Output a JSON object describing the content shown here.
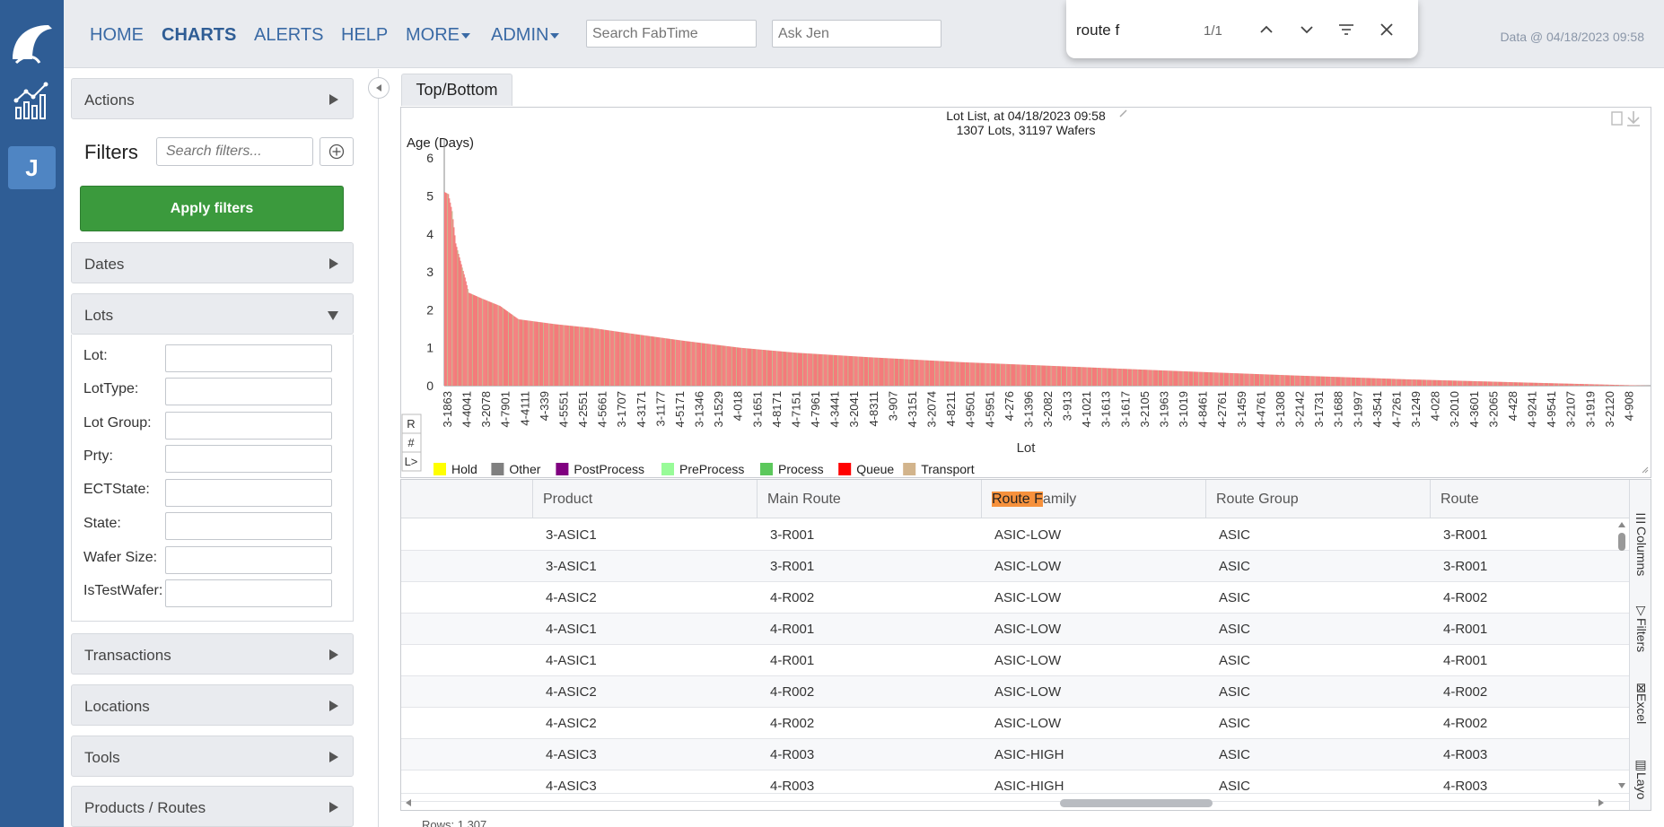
{
  "app": {
    "nav": [
      "HOME",
      "CHARTS",
      "ALERTS",
      "HELP",
      "MORE",
      "ADMIN"
    ],
    "active_nav": "CHARTS",
    "search_placeholder": "Search FabTime",
    "ask_placeholder": "Ask Jen",
    "data_stamp": "Data @ 04/18/2023 09:58",
    "user_initial": "J"
  },
  "findbar": {
    "query": "route f",
    "count": "1/1"
  },
  "sidebar": {
    "actions_label": "Actions",
    "filters_title": "Filters",
    "filters_search_placeholder": "Search filters...",
    "apply_label": "Apply filters",
    "dates_label": "Dates",
    "lots_label": "Lots",
    "lot_fields": [
      "Lot:",
      "LotType:",
      "Lot Group:",
      "Prty:",
      "ECTState:",
      "State:",
      "Wafer Size:",
      "IsTestWafer:"
    ],
    "transactions_label": "Transactions",
    "locations_label": "Locations",
    "tools_label": "Tools",
    "products_routes_label": "Products / Routes"
  },
  "main": {
    "tab_label": "Top/Bottom"
  },
  "chart_data": {
    "type": "bar",
    "title": "Lot List, at 04/18/2023 09:58",
    "subtitle": "1307 Lots, 31197 Wafers",
    "ylabel": "Age (Days)",
    "xlabel": "Lot",
    "ylim": [
      0,
      6.5
    ],
    "yticks": [
      0,
      1,
      2,
      3,
      4,
      5,
      6
    ],
    "x_tick_labels": [
      "3-1863",
      "4-4041",
      "3-2078",
      "4-7901",
      "4-4111",
      "4-339",
      "4-5551",
      "4-2551",
      "4-5661",
      "3-1707",
      "4-3171",
      "3-1177",
      "4-5171",
      "3-1346",
      "3-1529",
      "4-018",
      "3-1651",
      "4-8171",
      "4-7151",
      "4-7961",
      "4-3441",
      "3-2041",
      "4-8311",
      "3-907",
      "4-3151",
      "3-2074",
      "4-8211",
      "4-9501",
      "4-5951",
      "4-276",
      "3-1396",
      "3-2082",
      "3-913",
      "4-1021",
      "3-1613",
      "3-1617",
      "3-2105",
      "3-1963",
      "3-1019",
      "4-8461",
      "4-2761",
      "3-1459",
      "4-4761",
      "3-1308",
      "3-2142",
      "3-1731",
      "3-1688",
      "3-1997",
      "4-3541",
      "4-7261",
      "3-1249",
      "4-028",
      "3-2010",
      "4-3601",
      "3-2065",
      "4-428",
      "4-9241",
      "4-9541",
      "3-2107",
      "3-1919",
      "3-2120",
      "4-908"
    ],
    "legend": [
      {
        "name": "Hold",
        "color": "#ffff00"
      },
      {
        "name": "Other",
        "color": "#808080"
      },
      {
        "name": "PostProcess",
        "color": "#800080"
      },
      {
        "name": "PreProcess",
        "color": "#98fb98"
      },
      {
        "name": "Process",
        "color": "#5cc85c"
      },
      {
        "name": "Queue",
        "color": "#ff0000"
      },
      {
        "name": "Transport",
        "color": "#d2b48c"
      }
    ],
    "bar_color": "#f47b7b",
    "profile": [
      [
        0,
        5.1
      ],
      [
        4,
        5.05
      ],
      [
        8,
        4.6
      ],
      [
        12,
        3.75
      ],
      [
        18,
        3.2
      ],
      [
        22,
        2.85
      ],
      [
        26,
        2.45
      ],
      [
        40,
        2.3
      ],
      [
        60,
        2.1
      ],
      [
        80,
        1.75
      ],
      [
        120,
        1.62
      ],
      [
        160,
        1.52
      ],
      [
        200,
        1.38
      ],
      [
        260,
        1.18
      ],
      [
        320,
        1.0
      ],
      [
        380,
        0.87
      ],
      [
        460,
        0.75
      ],
      [
        560,
        0.62
      ],
      [
        680,
        0.5
      ],
      [
        800,
        0.38
      ],
      [
        920,
        0.27
      ],
      [
        1040,
        0.17
      ],
      [
        1160,
        0.09
      ],
      [
        1240,
        0.04
      ],
      [
        1306,
        0.0
      ]
    ],
    "bar_count": 1307,
    "side_buttons": [
      "R",
      "#",
      "L>"
    ]
  },
  "grid": {
    "columns": [
      "Product",
      "Main Route",
      "Route Family",
      "Route Group",
      "Route"
    ],
    "highlight_prefix": "Route F",
    "highlight_rest": "amily",
    "rows": [
      [
        "3-ASIC1",
        "3-R001",
        "ASIC-LOW",
        "ASIC",
        "3-R001"
      ],
      [
        "3-ASIC1",
        "3-R001",
        "ASIC-LOW",
        "ASIC",
        "3-R001"
      ],
      [
        "4-ASIC2",
        "4-R002",
        "ASIC-LOW",
        "ASIC",
        "4-R002"
      ],
      [
        "4-ASIC1",
        "4-R001",
        "ASIC-LOW",
        "ASIC",
        "4-R001"
      ],
      [
        "4-ASIC1",
        "4-R001",
        "ASIC-LOW",
        "ASIC",
        "4-R001"
      ],
      [
        "4-ASIC2",
        "4-R002",
        "ASIC-LOW",
        "ASIC",
        "4-R002"
      ],
      [
        "4-ASIC2",
        "4-R002",
        "ASIC-LOW",
        "ASIC",
        "4-R002"
      ],
      [
        "4-ASIC3",
        "4-R003",
        "ASIC-HIGH",
        "ASIC",
        "4-R003"
      ],
      [
        "4-ASIC3",
        "4-R003",
        "ASIC-HIGH",
        "ASIC",
        "4-R003"
      ]
    ],
    "side_tabs": [
      "Columns",
      "Filters",
      "Excel",
      "Layo"
    ],
    "footer": "Rows: 1,307"
  }
}
